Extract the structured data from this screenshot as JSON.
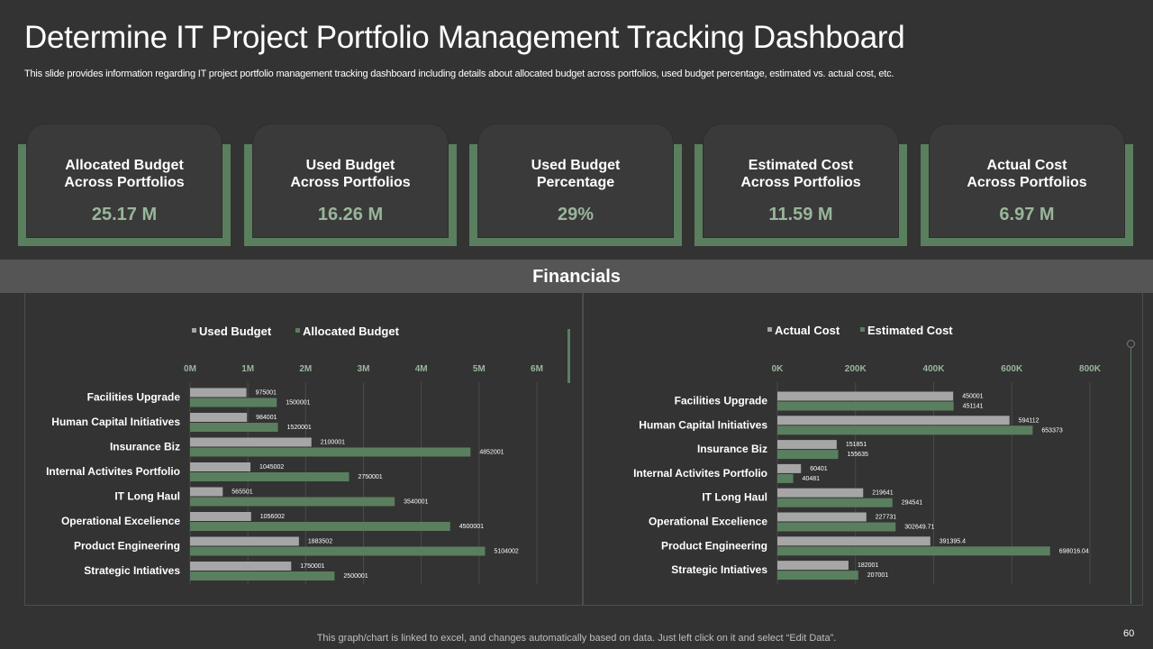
{
  "header": {
    "title": "Determine IT Project Portfolio Management Tracking Dashboard",
    "subtitle": "This slide provides information regarding IT project portfolio management tracking dashboard including details about allocated budget across portfolios, used budget percentage, estimated vs. actual cost, etc."
  },
  "kpis": [
    {
      "label": "Allocated Budget\nAcross  Portfolios",
      "value": "25.17 M"
    },
    {
      "label": "Used Budget\nAcross  Portfolios",
      "value": "16.26 M"
    },
    {
      "label": "Used Budget\nPercentage",
      "value": "29%"
    },
    {
      "label": "Estimated Cost\nAcross  Portfolios",
      "value": "11.59 M"
    },
    {
      "label": "Actual Cost\nAcross  Portfolios",
      "value": "6.97 M"
    }
  ],
  "section": {
    "title": "Financials"
  },
  "colors": {
    "gray_series": "#a6a6a6",
    "green_series": "#5a7f5e",
    "tick_color": "#9ab59c"
  },
  "chart_data": [
    {
      "type": "bar",
      "orientation": "horizontal",
      "categories": [
        "Facilities Upgrade",
        "Human Capital Initiatives",
        "Insurance Biz",
        "Internal Activites Portfolio",
        "IT Long Haul",
        "Operational Excelience",
        "Product Engineering",
        "Strategic Intiatives"
      ],
      "series": [
        {
          "name": "Used Budget",
          "color": "#a6a6a6",
          "values": [
            975001,
            984001,
            2100001,
            1045002,
            565501,
            1056002,
            1883502,
            1750001
          ],
          "labels": [
            "975001",
            "984001",
            "2100001",
            "1045002",
            "565501",
            "1056002",
            "1883502",
            "1750001"
          ]
        },
        {
          "name": "Allocated Budget",
          "color": "#5a7f5e",
          "values": [
            1500001,
            1520001,
            4852001,
            2750001,
            3540001,
            4500001,
            5104002,
            2500001
          ],
          "labels": [
            "1500001",
            "1520001",
            "4852001",
            "2750001",
            "3540001",
            "4500001",
            "5104002",
            "2500001"
          ]
        }
      ],
      "xlim": [
        0,
        6000000
      ],
      "xticks": [
        0,
        1000000,
        2000000,
        3000000,
        4000000,
        5000000,
        6000000
      ],
      "xtick_labels": [
        "0M",
        "1M",
        "2M",
        "3M",
        "4M",
        "5M",
        "6M"
      ],
      "legend": "top-center",
      "grid": true
    },
    {
      "type": "bar",
      "orientation": "horizontal",
      "categories": [
        "Facilities Upgrade",
        "Human Capital Initiatives",
        "Insurance Biz",
        "Internal Activites Portfolio",
        "IT Long Haul",
        "Operational Excelience",
        "Product Engineering",
        "Strategic Intiatives"
      ],
      "series": [
        {
          "name": "Actual Cost",
          "color": "#a6a6a6",
          "values": [
            450001,
            594112,
            151851,
            60401,
            219641,
            227731,
            391395.4,
            182001
          ],
          "labels": [
            "450001",
            "594112",
            "151851",
            "60401",
            "219641",
            "227731",
            "391395.4",
            "182001"
          ]
        },
        {
          "name": "Estimated Cost",
          "color": "#5a7f5e",
          "values": [
            451141,
            653373,
            155635,
            40481,
            294541,
            302649.71,
            698016.04,
            207001
          ],
          "labels": [
            "451141",
            "653373",
            "155635",
            "40481",
            "294541",
            "302649.71",
            "698016.04",
            "207001"
          ]
        }
      ],
      "xlim": [
        0,
        800000
      ],
      "xticks": [
        0,
        200000,
        400000,
        600000,
        800000
      ],
      "xtick_labels": [
        "0K",
        "200K",
        "400K",
        "600K",
        "800K"
      ],
      "legend": "top-center",
      "grid": true
    }
  ],
  "footer": {
    "note": "This graph/chart is linked to excel,  and changes automatically based on data. Just left click on it and select “Edit Data”.",
    "page_number": "60"
  }
}
